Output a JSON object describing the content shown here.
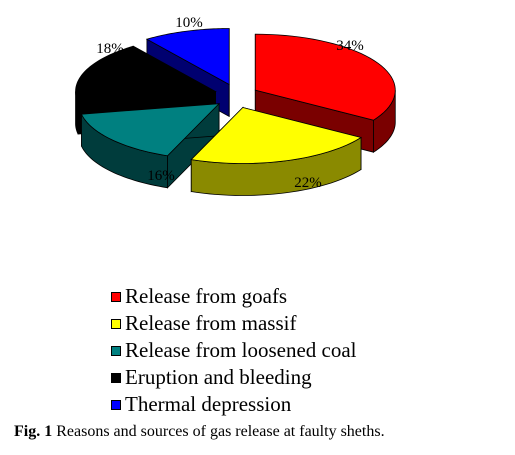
{
  "chart_data": {
    "type": "pie",
    "title": "",
    "slices": [
      {
        "name": "Release from goafs",
        "value": 34,
        "label": "34%",
        "color": "#ff0000",
        "side": "#7a0000"
      },
      {
        "name": "Release from massif",
        "value": 22,
        "label": "22%",
        "color": "#ffff00",
        "side": "#8a8a00"
      },
      {
        "name": "Release from loosened coal",
        "value": 16,
        "label": "16%",
        "color": "#008080",
        "side": "#003c3c"
      },
      {
        "name": "Eruption and bleeding",
        "value": 18,
        "label": "18%",
        "color": "#000000",
        "side": "#000000"
      },
      {
        "name": "Thermal depression",
        "value": 10,
        "label": "10%",
        "color": "#0000ff",
        "side": "#000070"
      }
    ],
    "legend_position": "bottom-left"
  },
  "caption": {
    "prefix": "Fig. 1",
    "text": "Reasons and sources of gas release at faulty sheths."
  }
}
